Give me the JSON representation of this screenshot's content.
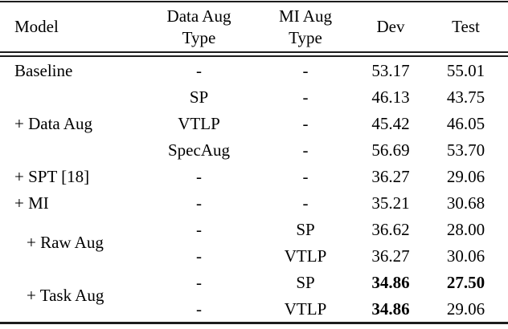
{
  "colors": {
    "background": "#ffffff",
    "text": "#000000",
    "rule": "#1c1c1c"
  },
  "header": {
    "model": "Model",
    "data_aug": {
      "line1": "Data Aug",
      "line2": "Type"
    },
    "mi_aug": {
      "line1": "MI Aug",
      "line2": "Type"
    },
    "dev": "Dev",
    "test": "Test"
  },
  "groups": [
    {
      "model": "Baseline",
      "indented": false,
      "rows": [
        {
          "data_aug": "-",
          "mi_aug": "-",
          "dev": "53.17",
          "test": "55.01",
          "dev_bold": false,
          "test_bold": false
        }
      ]
    },
    {
      "model": "+ Data Aug",
      "indented": false,
      "rows": [
        {
          "data_aug": "SP",
          "mi_aug": "-",
          "dev": "46.13",
          "test": "43.75",
          "dev_bold": false,
          "test_bold": false
        },
        {
          "data_aug": "VTLP",
          "mi_aug": "-",
          "dev": "45.42",
          "test": "46.05",
          "dev_bold": false,
          "test_bold": false
        },
        {
          "data_aug": "SpecAug",
          "mi_aug": "-",
          "dev": "56.69",
          "test": "53.70",
          "dev_bold": false,
          "test_bold": false
        }
      ]
    },
    {
      "model": "+ SPT [18]",
      "indented": false,
      "rows": [
        {
          "data_aug": "-",
          "mi_aug": "-",
          "dev": "36.27",
          "test": "29.06",
          "dev_bold": false,
          "test_bold": false
        }
      ]
    },
    {
      "model": "+ MI",
      "indented": false,
      "rows": [
        {
          "data_aug": "-",
          "mi_aug": "-",
          "dev": "35.21",
          "test": "30.68",
          "dev_bold": false,
          "test_bold": false
        }
      ]
    },
    {
      "model": "+ Raw Aug",
      "indented": true,
      "rows": [
        {
          "data_aug": "-",
          "mi_aug": "SP",
          "dev": "36.62",
          "test": "28.00",
          "dev_bold": false,
          "test_bold": false
        },
        {
          "data_aug": "-",
          "mi_aug": "VTLP",
          "dev": "36.27",
          "test": "30.06",
          "dev_bold": false,
          "test_bold": false
        }
      ]
    },
    {
      "model": "+ Task Aug",
      "indented": true,
      "rows": [
        {
          "data_aug": "-",
          "mi_aug": "SP",
          "dev": "34.86",
          "test": "27.50",
          "dev_bold": true,
          "test_bold": true
        },
        {
          "data_aug": "-",
          "mi_aug": "VTLP",
          "dev": "34.86",
          "test": "29.06",
          "dev_bold": true,
          "test_bold": false
        }
      ]
    }
  ]
}
